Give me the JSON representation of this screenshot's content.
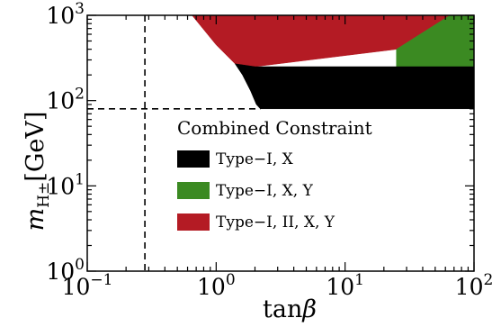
{
  "chart_data": {
    "type": "area",
    "xscale": "log",
    "yscale": "log",
    "xlim": [
      0.1,
      100
    ],
    "ylim": [
      1,
      1000
    ],
    "xlabel": "tanβ",
    "ylabel": "m_H± [GeV]",
    "xticks": [
      {
        "value": 0.1,
        "base": "10",
        "exp": "−1"
      },
      {
        "value": 1,
        "base": "10",
        "exp": "0"
      },
      {
        "value": 10,
        "base": "10",
        "exp": "1"
      },
      {
        "value": 100,
        "base": "10",
        "exp": "2"
      }
    ],
    "yticks": [
      {
        "value": 1,
        "base": "10",
        "exp": "0"
      },
      {
        "value": 10,
        "base": "10",
        "exp": "1"
      },
      {
        "value": 100,
        "base": "10",
        "exp": "2"
      },
      {
        "value": 1000,
        "base": "10",
        "exp": "3"
      }
    ],
    "reference_lines": {
      "x": 0.28,
      "y": 80
    },
    "legend": {
      "title": "Combined Constraint",
      "placement": "lower-right"
    },
    "series": [
      {
        "name": "Type−I, II, X, Y",
        "color": "#b41b24",
        "polygon": [
          [
            0.65,
            1000
          ],
          [
            65,
            1000
          ],
          [
            25,
            400
          ],
          [
            2.0,
            250
          ],
          [
            1.4,
            270
          ],
          [
            1.0,
            450
          ],
          [
            0.65,
            1000
          ]
        ]
      },
      {
        "name": "Type−I, X, Y",
        "color": "#3b8a22",
        "polygon": [
          [
            65,
            1000
          ],
          [
            100,
            1000
          ],
          [
            100,
            250
          ],
          [
            25,
            250
          ],
          [
            25,
            400
          ],
          [
            65,
            1000
          ]
        ]
      },
      {
        "name": "Type−I, X",
        "color": "#000000",
        "polygon": [
          [
            1.4,
            270
          ],
          [
            2.0,
            250
          ],
          [
            100,
            250
          ],
          [
            100,
            80
          ],
          [
            2.2,
            80
          ],
          [
            2.05,
            90
          ],
          [
            1.85,
            130
          ],
          [
            1.6,
            200
          ],
          [
            1.4,
            270
          ]
        ]
      }
    ]
  }
}
